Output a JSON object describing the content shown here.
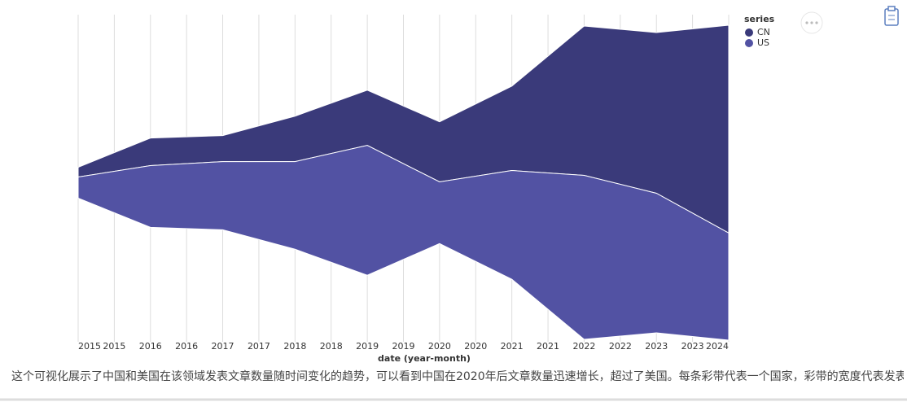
{
  "chart_data": {
    "type": "streamgraph",
    "x": [
      2015,
      2016,
      2017,
      2018,
      2019,
      2020,
      2021,
      2022,
      2023,
      2024
    ],
    "series": [
      {
        "name": "CN",
        "color": "#3a3a7a",
        "values": [
          6,
          17,
          16,
          28,
          34,
          37,
          52,
          92,
          99,
          128
        ]
      },
      {
        "name": "US",
        "color": "#5252a3",
        "values": [
          13,
          38,
          42,
          54,
          80,
          38,
          67,
          101,
          86,
          66
        ]
      }
    ],
    "xlim": [
      2015,
      2024
    ],
    "xticks": [
      2015,
      {
        "value": 2015.5,
        "label": "2015"
      },
      2016,
      {
        "value": 2016.5,
        "label": "2016"
      },
      2017,
      {
        "value": 2017.5,
        "label": "2017"
      },
      2018,
      {
        "value": 2018.5,
        "label": "2018"
      },
      2019,
      {
        "value": 2019.5,
        "label": "2019"
      },
      2020,
      {
        "value": 2020.5,
        "label": "2020"
      },
      2021,
      {
        "value": 2021.5,
        "label": "2021"
      },
      2022,
      {
        "value": 2022.5,
        "label": "2022"
      },
      2023,
      {
        "value": 2023.5,
        "label": "2023"
      },
      2024
    ],
    "xlabel": "date (year-month)",
    "legend_title": "series",
    "grid": true,
    "caption": "这个可视化展示了中国和美国在该领域发表文章数量随时间变化的趋势，可以看到中国在2020年后文章数量迅速增长，超过了美国。每条彩带代表一个国家，彩带的宽度代表发表文章的数量。"
  }
}
